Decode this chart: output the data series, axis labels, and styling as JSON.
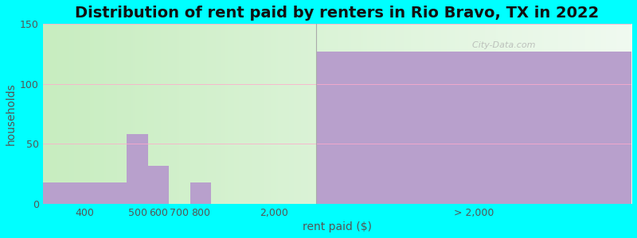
{
  "title": "Distribution of rent paid by renters in Rio Bravo, TX in 2022",
  "xlabel": "rent paid ($)",
  "ylabel": "households",
  "background_color": "#00FFFF",
  "bar_color": "#b8a0cc",
  "watermark": "  City-Data.com",
  "ylim": [
    0,
    150
  ],
  "yticks": [
    0,
    50,
    100,
    150
  ],
  "bar_heights": [
    18,
    58,
    32,
    0,
    18,
    127
  ],
  "bar_labels": [
    "400",
    "500",
    "600",
    "700",
    "800",
    "> 2,000"
  ],
  "title_fontsize": 14,
  "axis_label_fontsize": 10,
  "tick_label_fontsize": 9,
  "grid_color": "#ffaacc",
  "plot_bg_gradient_left": "#d0f0d0",
  "plot_bg_gradient_right": "#f8fff8"
}
